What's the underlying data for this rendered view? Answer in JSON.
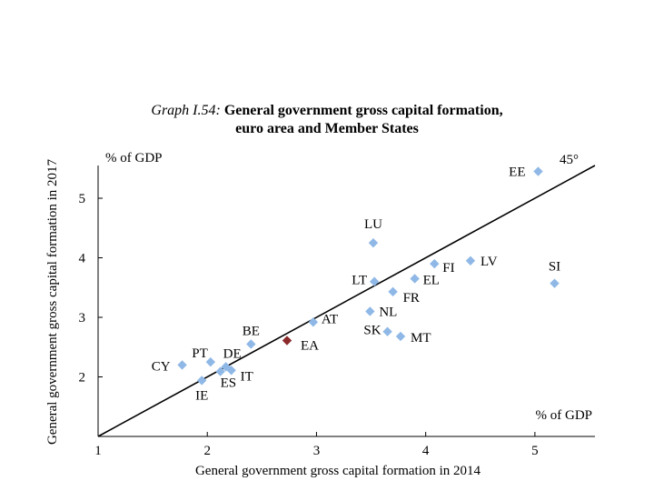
{
  "title": {
    "prefix": "Graph I.54:",
    "line1": "General government gross capital formation,",
    "line2": "euro area and Member States"
  },
  "chart_data": {
    "type": "scatter",
    "xlabel": "General government gross capital formation in 2014",
    "ylabel": "General government gross capital formation in 2017",
    "x_unit": "% of GDP",
    "y_unit": "% of GDP",
    "xlim": [
      1,
      5.55
    ],
    "ylim": [
      1,
      5.55
    ],
    "xticks": [
      1,
      2,
      3,
      4,
      5
    ],
    "yticks": [
      1,
      2,
      3,
      4,
      5
    ],
    "reference_line": {
      "label": "45°",
      "from": [
        1,
        1
      ],
      "to": [
        5.55,
        5.55
      ]
    },
    "colors": {
      "member": "#8fb8e6",
      "euro_area": "#8b2a2a",
      "line": "#000000"
    },
    "points": [
      {
        "label": "EE",
        "x": 5.03,
        "y": 5.45,
        "group": "member"
      },
      {
        "label": "LU",
        "x": 3.52,
        "y": 4.25,
        "group": "member"
      },
      {
        "label": "FI",
        "x": 4.08,
        "y": 3.9,
        "group": "member"
      },
      {
        "label": "LV",
        "x": 4.41,
        "y": 3.95,
        "group": "member"
      },
      {
        "label": "LT",
        "x": 3.53,
        "y": 3.6,
        "group": "member"
      },
      {
        "label": "EL",
        "x": 3.9,
        "y": 3.65,
        "group": "member"
      },
      {
        "label": "FR",
        "x": 3.7,
        "y": 3.43,
        "group": "member"
      },
      {
        "label": "SI",
        "x": 5.18,
        "y": 3.57,
        "group": "member"
      },
      {
        "label": "NL",
        "x": 3.49,
        "y": 3.1,
        "group": "member"
      },
      {
        "label": "AT",
        "x": 2.97,
        "y": 2.92,
        "group": "member"
      },
      {
        "label": "SK",
        "x": 3.65,
        "y": 2.76,
        "group": "member"
      },
      {
        "label": "MT",
        "x": 3.77,
        "y": 2.68,
        "group": "member"
      },
      {
        "label": "BE",
        "x": 2.4,
        "y": 2.55,
        "group": "member"
      },
      {
        "label": "EA",
        "x": 2.73,
        "y": 2.61,
        "group": "euro_area"
      },
      {
        "label": "PT",
        "x": 2.03,
        "y": 2.25,
        "group": "member"
      },
      {
        "label": "DE",
        "x": 2.17,
        "y": 2.17,
        "group": "member"
      },
      {
        "label": "CY",
        "x": 1.77,
        "y": 2.2,
        "group": "member"
      },
      {
        "label": "IT",
        "x": 2.22,
        "y": 2.11,
        "group": "member"
      },
      {
        "label": "ES",
        "x": 2.12,
        "y": 2.09,
        "group": "member"
      },
      {
        "label": "IE",
        "x": 1.95,
        "y": 1.94,
        "group": "member"
      }
    ]
  }
}
